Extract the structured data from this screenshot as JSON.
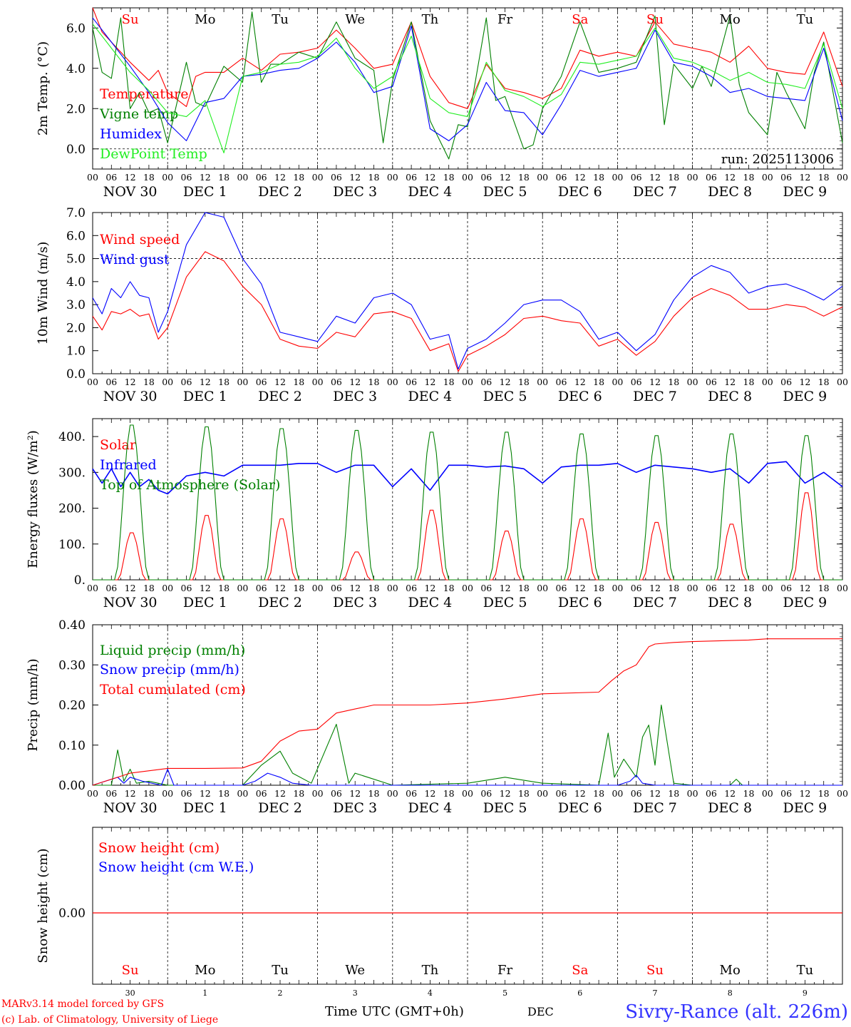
{
  "footer": {
    "credit_line1": "MARv3.14 model forced by GFS",
    "credit_line2": "(c) Lab. of Climatology, University of Liege",
    "axis_title": "Time UTC (GMT+0h)",
    "month": "DEC",
    "station": "Sivry-Rance (alt. 226m)"
  },
  "run_label": "run: 2025113006",
  "time_axis": {
    "days": 10,
    "hour_ticks": [
      "00",
      "06",
      "12",
      "18"
    ],
    "last_tick": "00",
    "date_labels": [
      "NOV 30",
      "DEC  1",
      "DEC  2",
      "DEC  3",
      "DEC  4",
      "DEC  5",
      "DEC  6",
      "DEC  7",
      "DEC  8",
      "DEC  9"
    ],
    "weekdays": [
      "Su",
      "Mo",
      "Tu",
      "We",
      "Th",
      "Fr",
      "Sa",
      "Su",
      "Mo",
      "Tu"
    ],
    "weekend_flags": [
      true,
      false,
      false,
      false,
      false,
      false,
      true,
      true,
      false,
      false
    ],
    "day_numbers": [
      "30",
      "1",
      "2",
      "3",
      "4",
      "5",
      "6",
      "7",
      "8",
      "9"
    ]
  },
  "colors": {
    "red": "#ff0000",
    "green": "#008000",
    "blue": "#0000ff",
    "lightgreen": "#22ee22",
    "weekend": "#ff0000"
  },
  "chart_data": [
    {
      "type": "line",
      "ylabel": "2m Temp. (°C)",
      "ylim": [
        -1.0,
        7.0
      ],
      "yticks": [
        "0.0",
        "2.0",
        "4.0",
        "6.0"
      ],
      "ytick_values": [
        0,
        2,
        4,
        6
      ],
      "refline": 0,
      "series": [
        {
          "name": "Temperature",
          "color": "red",
          "legend": "Temperature",
          "x": [
            0,
            3,
            6,
            12,
            18,
            21,
            24,
            30,
            33,
            36,
            42,
            48,
            54,
            60,
            66,
            72,
            78,
            84,
            90,
            96,
            102,
            108,
            114,
            120,
            126,
            132,
            138,
            144,
            150,
            156,
            162,
            168,
            174,
            180,
            186,
            192,
            198,
            204,
            210,
            216,
            222,
            228,
            234,
            240
          ],
          "values": [
            7.0,
            5.8,
            5.3,
            4.3,
            3.4,
            3.9,
            2.8,
            2.1,
            3.6,
            3.8,
            3.8,
            4.5,
            3.9,
            4.7,
            4.8,
            5.0,
            5.9,
            5.0,
            4.0,
            4.2,
            6.3,
            3.6,
            2.3,
            2.0,
            4.2,
            3.0,
            2.8,
            2.5,
            3.0,
            4.9,
            4.6,
            4.8,
            4.6,
            6.3,
            5.2,
            5.0,
            4.8,
            4.3,
            5.1,
            4.0,
            3.8,
            3.7,
            5.8,
            3.1
          ]
        },
        {
          "name": "Vigne temp",
          "color": "green",
          "legend": "Vigne temp",
          "x": [
            0,
            3,
            6,
            9,
            12,
            15,
            18,
            21,
            24,
            30,
            33,
            36,
            42,
            48,
            51,
            54,
            57,
            60,
            66,
            72,
            78,
            84,
            90,
            93,
            96,
            102,
            108,
            114,
            117,
            120,
            126,
            129,
            132,
            138,
            141,
            144,
            150,
            156,
            162,
            168,
            174,
            180,
            183,
            186,
            192,
            195,
            198,
            204,
            207,
            210,
            216,
            219,
            222,
            228,
            231,
            234,
            240
          ],
          "values": [
            6.0,
            3.8,
            3.5,
            6.5,
            2.0,
            2.8,
            1.8,
            2.0,
            0.3,
            4.3,
            2.3,
            2.1,
            4.1,
            3.3,
            6.8,
            3.3,
            4.2,
            4.2,
            4.8,
            4.5,
            6.3,
            4.5,
            3.9,
            0.3,
            3.4,
            6.3,
            1.4,
            -0.5,
            1.2,
            1.1,
            6.5,
            2.4,
            2.6,
            0.0,
            0.2,
            2.0,
            3.6,
            6.3,
            3.8,
            4.0,
            4.3,
            6.6,
            1.2,
            4.2,
            3.0,
            4.1,
            3.1,
            6.6,
            3.2,
            1.8,
            0.7,
            3.8,
            2.8,
            1.0,
            3.8,
            5.3,
            0.3
          ]
        },
        {
          "name": "Humidex",
          "color": "blue",
          "legend": "Humidex",
          "x": [
            0,
            6,
            12,
            18,
            24,
            30,
            36,
            42,
            48,
            54,
            60,
            66,
            72,
            78,
            84,
            90,
            96,
            102,
            108,
            114,
            120,
            126,
            132,
            138,
            144,
            150,
            156,
            162,
            168,
            174,
            180,
            186,
            192,
            198,
            204,
            210,
            216,
            222,
            228,
            234,
            240
          ],
          "values": [
            6.5,
            5.3,
            4.1,
            2.8,
            1.3,
            0.4,
            2.3,
            2.5,
            3.6,
            3.7,
            3.9,
            4.0,
            4.5,
            5.3,
            4.3,
            2.8,
            3.1,
            6.1,
            1.0,
            0.4,
            1.2,
            3.3,
            1.9,
            1.8,
            0.7,
            2.2,
            3.9,
            3.6,
            3.8,
            4.0,
            5.9,
            4.3,
            4.1,
            3.6,
            2.8,
            3.0,
            2.6,
            2.5,
            2.4,
            5.0,
            1.4
          ]
        },
        {
          "name": "DewPoint Temp",
          "color": "lightgreen",
          "legend": "DewPoint Temp",
          "x": [
            0,
            6,
            12,
            18,
            24,
            30,
            36,
            42,
            48,
            54,
            60,
            66,
            72,
            78,
            84,
            90,
            96,
            102,
            108,
            114,
            120,
            126,
            132,
            138,
            144,
            150,
            156,
            162,
            168,
            174,
            180,
            186,
            192,
            198,
            204,
            210,
            216,
            222,
            228,
            234,
            240
          ],
          "values": [
            6.2,
            5.0,
            3.8,
            2.9,
            1.8,
            1.6,
            2.4,
            -0.2,
            3.6,
            3.8,
            4.2,
            4.3,
            4.6,
            5.5,
            4.0,
            3.0,
            3.6,
            5.6,
            2.5,
            1.8,
            1.6,
            4.3,
            2.9,
            2.6,
            2.1,
            2.7,
            4.3,
            4.2,
            4.4,
            4.6,
            6.0,
            4.5,
            4.3,
            3.9,
            3.4,
            3.8,
            3.3,
            3.2,
            3.0,
            5.2,
            2.0
          ]
        }
      ]
    },
    {
      "type": "line",
      "ylabel": "10m Wind (m/s)",
      "ylim": [
        0,
        7.0
      ],
      "yticks": [
        "0.0",
        "1.0",
        "2.0",
        "3.0",
        "4.0",
        "5.0",
        "6.0",
        "7.0"
      ],
      "ytick_values": [
        0,
        1,
        2,
        3,
        4,
        5,
        6,
        7
      ],
      "refline": 5,
      "series": [
        {
          "name": "Wind speed",
          "color": "red",
          "legend": "Wind speed",
          "x": [
            0,
            3,
            6,
            9,
            12,
            15,
            18,
            21,
            24,
            30,
            36,
            42,
            48,
            54,
            60,
            66,
            72,
            78,
            84,
            90,
            96,
            102,
            108,
            114,
            117,
            120,
            126,
            132,
            138,
            144,
            150,
            156,
            162,
            168,
            174,
            180,
            186,
            192,
            198,
            204,
            210,
            216,
            222,
            228,
            234,
            240
          ],
          "values": [
            2.5,
            1.9,
            2.7,
            2.6,
            2.8,
            2.5,
            2.6,
            1.5,
            2.0,
            4.2,
            5.3,
            4.9,
            3.8,
            3.0,
            1.5,
            1.2,
            1.1,
            1.8,
            1.6,
            2.6,
            2.7,
            2.4,
            1.0,
            1.3,
            0.1,
            0.8,
            1.2,
            1.7,
            2.4,
            2.5,
            2.3,
            2.2,
            1.2,
            1.5,
            0.8,
            1.4,
            2.5,
            3.3,
            3.7,
            3.4,
            2.8,
            2.8,
            3.0,
            2.9,
            2.5,
            2.9
          ]
        },
        {
          "name": "Wind gust",
          "color": "blue",
          "legend": "Wind gust",
          "x": [
            0,
            3,
            6,
            9,
            12,
            15,
            18,
            21,
            24,
            30,
            36,
            42,
            48,
            54,
            60,
            66,
            72,
            78,
            84,
            90,
            96,
            102,
            108,
            114,
            117,
            120,
            126,
            132,
            138,
            144,
            150,
            156,
            162,
            168,
            174,
            180,
            186,
            192,
            198,
            204,
            210,
            216,
            222,
            228,
            234,
            240
          ],
          "values": [
            3.3,
            2.6,
            3.7,
            3.3,
            4.0,
            3.4,
            3.3,
            1.8,
            2.7,
            5.6,
            7.0,
            6.8,
            5.0,
            3.9,
            1.8,
            1.6,
            1.4,
            2.5,
            2.2,
            3.3,
            3.5,
            3.0,
            1.5,
            1.7,
            0.2,
            1.1,
            1.5,
            2.2,
            3.0,
            3.2,
            3.2,
            2.7,
            1.5,
            1.8,
            1.0,
            1.7,
            3.2,
            4.2,
            4.7,
            4.4,
            3.5,
            3.8,
            3.9,
            3.6,
            3.2,
            3.8
          ]
        }
      ]
    },
    {
      "type": "line",
      "ylabel": "Energy fluxes (W/m²)",
      "ylim": [
        0,
        450
      ],
      "yticks": [
        "0.",
        "100.",
        "200.",
        "300.",
        "400."
      ],
      "ytick_values": [
        0,
        100,
        200,
        300,
        400
      ],
      "series": [
        {
          "name": "Solar",
          "color": "red",
          "legend": "Solar",
          "diurnal_peaks": [
            135,
            185,
            175,
            80,
            200,
            140,
            175,
            165,
            160,
            250
          ]
        },
        {
          "name": "Infrared",
          "color": "blue",
          "legend": "Infrared",
          "x": [
            0,
            3,
            6,
            9,
            12,
            15,
            18,
            21,
            24,
            30,
            36,
            42,
            48,
            54,
            60,
            66,
            72,
            78,
            84,
            90,
            96,
            102,
            108,
            114,
            120,
            126,
            132,
            138,
            144,
            150,
            156,
            162,
            168,
            174,
            180,
            186,
            192,
            198,
            204,
            210,
            216,
            222,
            228,
            234,
            240
          ],
          "values": [
            310,
            270,
            310,
            260,
            300,
            260,
            280,
            250,
            240,
            290,
            300,
            290,
            320,
            320,
            320,
            325,
            325,
            300,
            320,
            320,
            260,
            310,
            250,
            320,
            320,
            315,
            318,
            310,
            270,
            315,
            320,
            320,
            325,
            300,
            320,
            315,
            310,
            300,
            310,
            270,
            325,
            330,
            270,
            300,
            260
          ]
        },
        {
          "name": "Top of Atmosphere (Solar)",
          "color": "green",
          "legend": "Top of Atmosphere (Solar)",
          "diurnal_peaks": [
            440,
            435,
            430,
            425,
            420,
            420,
            415,
            410,
            415,
            410
          ]
        }
      ]
    },
    {
      "type": "line",
      "ylabel": "Precip (mm/h)",
      "ylim": [
        0,
        0.4
      ],
      "yticks": [
        "0.00",
        "0.10",
        "0.20",
        "0.30",
        "0.40"
      ],
      "ytick_values": [
        0,
        0.1,
        0.2,
        0.3,
        0.4
      ],
      "series": [
        {
          "name": "Liquid precip",
          "color": "green",
          "legend": "Liquid precip (mm/h)",
          "x": [
            0,
            6,
            8,
            10,
            12,
            14,
            18,
            24,
            48,
            54,
            60,
            64,
            70,
            78,
            82,
            84,
            96,
            120,
            132,
            144,
            162,
            165,
            167,
            170,
            174,
            176,
            178,
            180,
            182,
            186,
            192,
            198,
            204,
            206,
            208,
            216,
            240
          ],
          "values": [
            0,
            0,
            0.088,
            0.01,
            0.04,
            0.005,
            0.01,
            0,
            0,
            0.05,
            0.085,
            0.03,
            0.005,
            0.152,
            0.005,
            0.03,
            0,
            0.005,
            0.02,
            0.005,
            0.0,
            0.13,
            0.02,
            0.065,
            0.02,
            0.12,
            0.15,
            0.05,
            0.2,
            0.005,
            0,
            0,
            0,
            0.015,
            0,
            0,
            0
          ]
        },
        {
          "name": "Snow precip",
          "color": "blue",
          "legend": "Snow precip (mm/h)",
          "x": [
            0,
            8,
            10,
            12,
            16,
            22,
            24,
            26,
            48,
            52,
            56,
            60,
            64,
            70,
            72,
            168,
            172,
            174,
            176,
            180,
            240
          ],
          "values": [
            0,
            0.02,
            0.005,
            0.02,
            0.01,
            0.0,
            0.04,
            0.0,
            0,
            0.01,
            0.03,
            0.02,
            0.005,
            0,
            0,
            0,
            0.01,
            0.025,
            0.005,
            0,
            0
          ]
        },
        {
          "name": "Total cumulated",
          "color": "red",
          "legend": "Total cumulated (cm)",
          "x": [
            0,
            6,
            12,
            24,
            36,
            48,
            54,
            60,
            66,
            72,
            78,
            84,
            90,
            96,
            108,
            120,
            132,
            144,
            162,
            166,
            170,
            174,
            178,
            180,
            186,
            192,
            210,
            216,
            240
          ],
          "values": [
            0,
            0.015,
            0.03,
            0.042,
            0.042,
            0.043,
            0.06,
            0.11,
            0.135,
            0.14,
            0.18,
            0.19,
            0.2,
            0.2,
            0.2,
            0.205,
            0.215,
            0.228,
            0.232,
            0.26,
            0.285,
            0.3,
            0.345,
            0.352,
            0.356,
            0.358,
            0.362,
            0.365,
            0.365
          ]
        }
      ]
    },
    {
      "type": "line",
      "ylabel": "Snow height (cm)",
      "yticks": [
        "0.00"
      ],
      "series": [
        {
          "name": "Snow height (cm)",
          "color": "red",
          "legend": "Snow height (cm)",
          "values": [
            0.0
          ]
        },
        {
          "name": "Snow height (cm W.E.)",
          "color": "blue",
          "legend": "Snow height (cm W.E.)",
          "values": [
            0.0
          ]
        }
      ]
    }
  ]
}
